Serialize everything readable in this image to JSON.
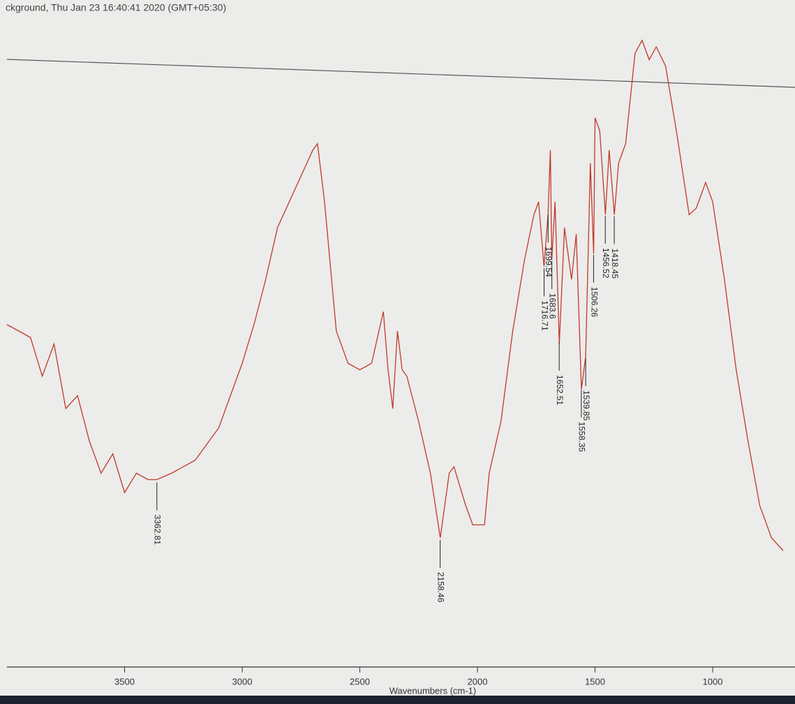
{
  "chart_data": {
    "type": "line",
    "title": "ckground, Thu Jan 23 16:40:41 2020 (GMT+05:30)",
    "x_label": "Wavenumbers (cm-1)",
    "x": [
      4000,
      3900,
      3850,
      3800,
      3750,
      3700,
      3650,
      3600,
      3550,
      3500,
      3450,
      3400,
      3363,
      3300,
      3200,
      3100,
      3000,
      2950,
      2900,
      2850,
      2800,
      2750,
      2700,
      2680,
      2650,
      2620,
      2600,
      2550,
      2500,
      2450,
      2400,
      2380,
      2360,
      2340,
      2320,
      2300,
      2250,
      2200,
      2158,
      2120,
      2100,
      2050,
      2020,
      2000,
      1970,
      1950,
      1900,
      1850,
      1800,
      1760,
      1740,
      1717,
      1700,
      1690,
      1684,
      1670,
      1652,
      1630,
      1600,
      1580,
      1558,
      1540,
      1520,
      1506,
      1500,
      1480,
      1456,
      1440,
      1418,
      1400,
      1370,
      1330,
      1300,
      1270,
      1240,
      1200,
      1150,
      1100,
      1070,
      1030,
      1000,
      950,
      900,
      850,
      800,
      750,
      700
    ],
    "series": [
      {
        "color": "#c0392b",
        "values": [
          53,
          51,
          45,
          50,
          40,
          42,
          35,
          30,
          33,
          27,
          30,
          29,
          29,
          30,
          32,
          37,
          47,
          53,
          60,
          68,
          72,
          76,
          80,
          81,
          72,
          60,
          52,
          47,
          46,
          47,
          55,
          46,
          40,
          52,
          46,
          45,
          38,
          30,
          20,
          30,
          31,
          25,
          22,
          22,
          22,
          30,
          38,
          52,
          63,
          70,
          72,
          62,
          70,
          80,
          63,
          72,
          50,
          68,
          60,
          67,
          43,
          48,
          78,
          64,
          85,
          83,
          70,
          80,
          70,
          78,
          81,
          95,
          97,
          94,
          96,
          93,
          82,
          70,
          71,
          75,
          72,
          60,
          46,
          35,
          25,
          20,
          18
        ]
      }
    ],
    "peaks": [
      3362.81,
      2158.46,
      1716.71,
      1699.54,
      1683.6,
      1652.51,
      1558.35,
      1539.85,
      1506.26,
      1456.52,
      1418.45
    ],
    "xlim": [
      4000,
      650
    ],
    "ylim": [
      0,
      100
    ],
    "xticks": [
      3500,
      3000,
      2500,
      2000,
      1500,
      1000
    ]
  }
}
